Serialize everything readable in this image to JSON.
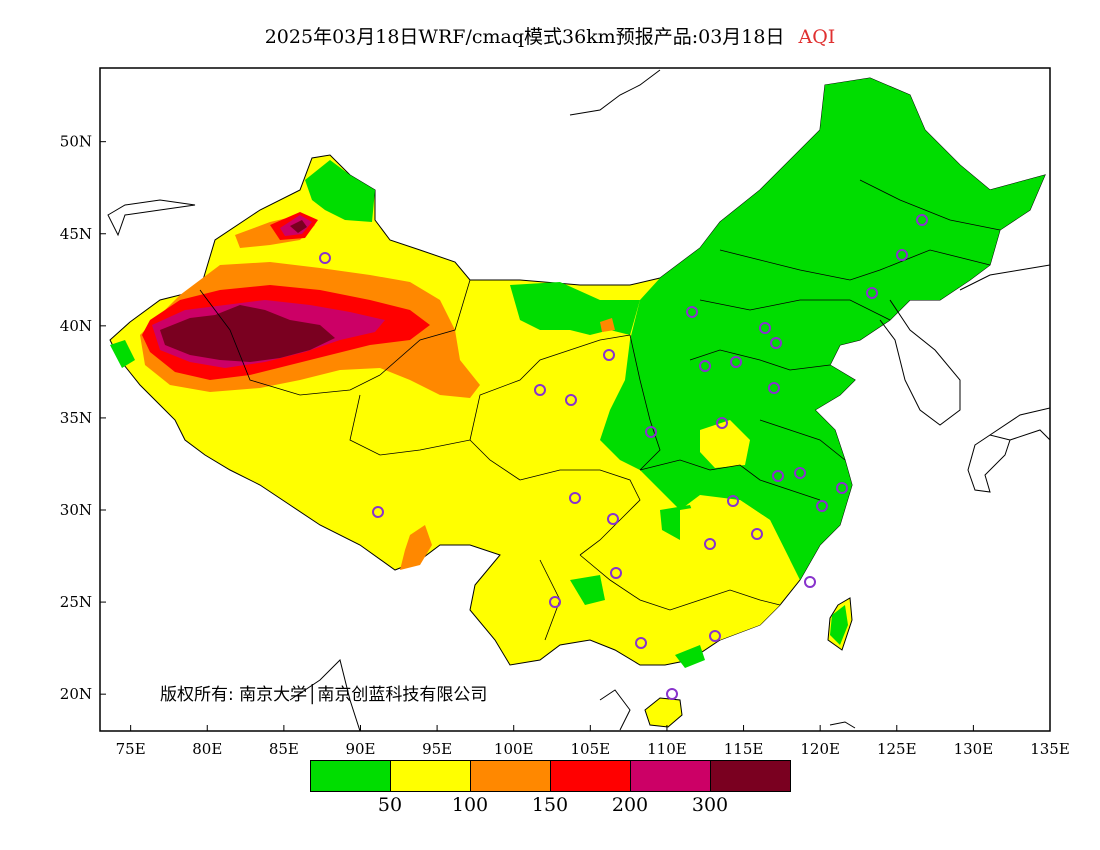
{
  "title": {
    "text": "2025年03月18日WRF/cmaq模式36km预报产品:03月18日",
    "variable": "AQI",
    "variable_color": "#e03030"
  },
  "map": {
    "lon_range": [
      73,
      135
    ],
    "lat_range": [
      18,
      54
    ],
    "x_ticks": [
      "75E",
      "80E",
      "85E",
      "90E",
      "95E",
      "100E",
      "105E",
      "110E",
      "115E",
      "120E",
      "125E",
      "130E",
      "135E"
    ],
    "y_ticks": [
      "50N",
      "45N",
      "40N",
      "35N",
      "30N",
      "25N",
      "20N"
    ]
  },
  "legend": {
    "colors": [
      "#00dd00",
      "#ffff00",
      "#ff8800",
      "#ff0000",
      "#cc0066",
      "#7a0020"
    ],
    "labels": [
      "50",
      "100",
      "150",
      "200",
      "300"
    ]
  },
  "copyright": "版权所有: 南京大学│南京创蓝科技有限公司",
  "stations_color": "#8833cc"
}
